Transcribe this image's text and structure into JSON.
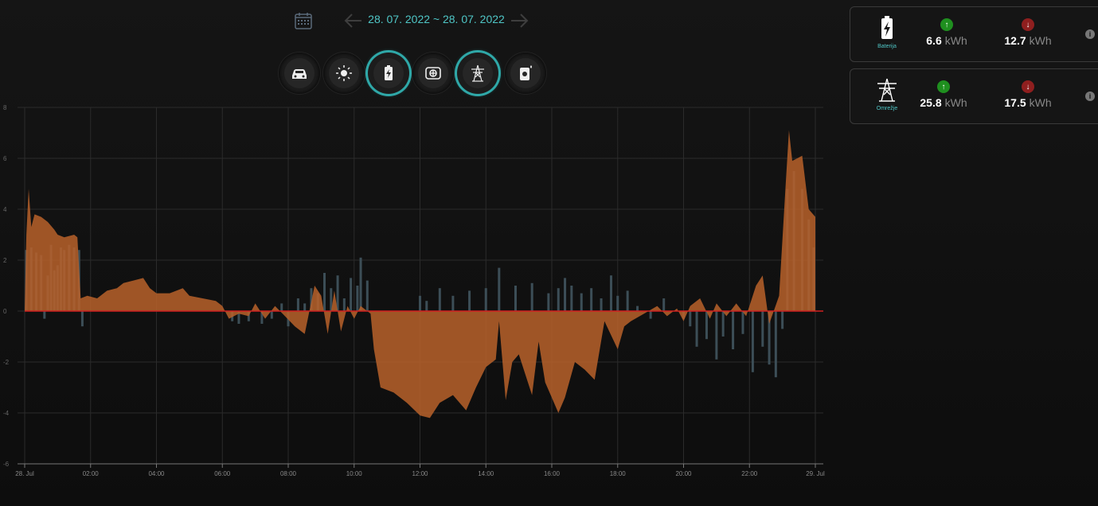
{
  "header": {
    "date_range": "28. 07. 2022 ~ 28. 07. 2022",
    "icons": {
      "calendar": "calendar-icon",
      "prev": "arrow-left-icon",
      "next": "arrow-right-icon"
    }
  },
  "toolbar": {
    "buttons": [
      {
        "name": "car-button",
        "icon": "car-icon",
        "active": false
      },
      {
        "name": "solar-button",
        "icon": "sun-icon",
        "active": false
      },
      {
        "name": "battery-button",
        "icon": "battery-icon",
        "active": true
      },
      {
        "name": "consumption-button",
        "icon": "meter-icon",
        "active": false
      },
      {
        "name": "grid-button",
        "icon": "power-tower-icon",
        "active": true
      },
      {
        "name": "heater-button",
        "icon": "boiler-icon",
        "active": false
      }
    ],
    "accent_color": "#2fa8a8"
  },
  "cards": [
    {
      "label": "Baterija",
      "icon": "battery-icon",
      "up": {
        "value": "6.6",
        "unit": "kWh",
        "color": "#1f8f1f"
      },
      "down": {
        "value": "12.7",
        "unit": "kWh",
        "color": "#8f1f1f"
      }
    },
    {
      "label": "Omrežje",
      "icon": "power-tower-icon",
      "up": {
        "value": "25.8",
        "unit": "kWh",
        "color": "#1f8f1f"
      },
      "down": {
        "value": "17.5",
        "unit": "kWh",
        "color": "#8f1f1f"
      }
    }
  ],
  "chart_data": {
    "type": "area",
    "title": "",
    "xlabel": "",
    "ylabel": "",
    "ylim": [
      -6,
      8
    ],
    "y_ticks": [
      "8",
      "6",
      "4",
      "2",
      "0",
      "-2",
      "-4",
      "-6"
    ],
    "x_tick_labels": [
      "28. Jul",
      "02:00",
      "04:00",
      "06:00",
      "08:00",
      "10:00",
      "12:00",
      "14:00",
      "16:00",
      "18:00",
      "20:00",
      "22:00",
      "29. Jul"
    ],
    "x_hours": [
      0,
      2,
      4,
      6,
      8,
      10,
      12,
      14,
      16,
      18,
      20,
      22,
      24
    ],
    "grid": true,
    "colors": {
      "area": "#b8612a",
      "bars": "#3c4e57",
      "zero_line": "#d02020"
    },
    "series": [
      {
        "type": "area",
        "points": [
          [
            0,
            0
          ],
          [
            0.05,
            3.0
          ],
          [
            0.12,
            4.8
          ],
          [
            0.2,
            3.3
          ],
          [
            0.3,
            3.8
          ],
          [
            0.5,
            3.7
          ],
          [
            0.7,
            3.5
          ],
          [
            0.9,
            3.2
          ],
          [
            1.0,
            3.0
          ],
          [
            1.2,
            2.9
          ],
          [
            1.5,
            3.0
          ],
          [
            1.6,
            2.9
          ],
          [
            1.7,
            0.5
          ],
          [
            1.9,
            0.6
          ],
          [
            2.2,
            0.5
          ],
          [
            2.5,
            0.8
          ],
          [
            2.8,
            0.9
          ],
          [
            3.0,
            1.1
          ],
          [
            3.3,
            1.2
          ],
          [
            3.6,
            1.3
          ],
          [
            3.8,
            0.9
          ],
          [
            4.0,
            0.7
          ],
          [
            4.4,
            0.7
          ],
          [
            4.8,
            0.9
          ],
          [
            5.0,
            0.6
          ],
          [
            5.4,
            0.5
          ],
          [
            5.8,
            0.4
          ],
          [
            6.0,
            0.2
          ],
          [
            6.2,
            -0.3
          ],
          [
            6.5,
            -0.1
          ],
          [
            6.8,
            -0.2
          ],
          [
            7.0,
            0.3
          ],
          [
            7.3,
            -0.3
          ],
          [
            7.6,
            0.2
          ],
          [
            7.9,
            -0.2
          ],
          [
            8.2,
            -0.6
          ],
          [
            8.5,
            -0.9
          ],
          [
            8.8,
            1.0
          ],
          [
            9.0,
            0.6
          ],
          [
            9.2,
            -0.9
          ],
          [
            9.4,
            0.8
          ],
          [
            9.6,
            -0.8
          ],
          [
            9.8,
            0.2
          ],
          [
            10.0,
            -0.3
          ],
          [
            10.2,
            0.2
          ],
          [
            10.5,
            -0.1
          ],
          [
            10.6,
            -1.5
          ],
          [
            10.8,
            -3.0
          ],
          [
            11.2,
            -3.2
          ],
          [
            11.6,
            -3.6
          ],
          [
            12.0,
            -4.1
          ],
          [
            12.3,
            -4.2
          ],
          [
            12.6,
            -3.6
          ],
          [
            13.0,
            -3.3
          ],
          [
            13.4,
            -3.9
          ],
          [
            13.7,
            -3.0
          ],
          [
            14.0,
            -2.2
          ],
          [
            14.3,
            -1.9
          ],
          [
            14.4,
            -0.4
          ],
          [
            14.6,
            -3.5
          ],
          [
            14.8,
            -2.0
          ],
          [
            15.0,
            -1.7
          ],
          [
            15.2,
            -2.5
          ],
          [
            15.4,
            -3.3
          ],
          [
            15.6,
            -1.2
          ],
          [
            15.8,
            -2.8
          ],
          [
            16.0,
            -3.4
          ],
          [
            16.2,
            -4.0
          ],
          [
            16.4,
            -3.4
          ],
          [
            16.7,
            -2.0
          ],
          [
            17.0,
            -2.3
          ],
          [
            17.3,
            -2.7
          ],
          [
            17.6,
            -0.4
          ],
          [
            18.0,
            -1.5
          ],
          [
            18.2,
            -0.6
          ],
          [
            18.4,
            -0.4
          ],
          [
            18.8,
            -0.1
          ],
          [
            19.2,
            0.2
          ],
          [
            19.5,
            -0.2
          ],
          [
            19.8,
            0.1
          ],
          [
            20.0,
            -0.4
          ],
          [
            20.2,
            0.2
          ],
          [
            20.5,
            0.5
          ],
          [
            20.8,
            -0.3
          ],
          [
            21.0,
            0.3
          ],
          [
            21.3,
            -0.2
          ],
          [
            21.6,
            0.3
          ],
          [
            21.9,
            -0.2
          ],
          [
            22.2,
            1.0
          ],
          [
            22.4,
            1.4
          ],
          [
            22.6,
            -0.5
          ],
          [
            22.9,
            0.6
          ],
          [
            23.1,
            5.0
          ],
          [
            23.2,
            7.1
          ],
          [
            23.3,
            5.9
          ],
          [
            23.6,
            6.1
          ],
          [
            23.8,
            4.0
          ],
          [
            24.0,
            3.7
          ],
          [
            24.0,
            0
          ]
        ]
      },
      {
        "type": "bars",
        "points": [
          [
            0.05,
            2.4
          ],
          [
            0.2,
            2.5
          ],
          [
            0.35,
            2.3
          ],
          [
            0.5,
            2.2
          ],
          [
            0.6,
            -0.3
          ],
          [
            0.7,
            1.4
          ],
          [
            0.8,
            2.6
          ],
          [
            0.9,
            1.6
          ],
          [
            1.0,
            1.8
          ],
          [
            1.1,
            2.5
          ],
          [
            1.2,
            2.4
          ],
          [
            1.35,
            2.6
          ],
          [
            1.5,
            2.5
          ],
          [
            1.65,
            2.4
          ],
          [
            1.75,
            -0.6
          ],
          [
            6.3,
            -0.4
          ],
          [
            6.5,
            -0.5
          ],
          [
            6.8,
            -0.4
          ],
          [
            7.2,
            -0.5
          ],
          [
            7.5,
            -0.3
          ],
          [
            7.8,
            0.3
          ],
          [
            8.0,
            -0.6
          ],
          [
            8.3,
            0.5
          ],
          [
            8.5,
            0.3
          ],
          [
            8.7,
            0.9
          ],
          [
            8.9,
            0.7
          ],
          [
            9.1,
            1.5
          ],
          [
            9.3,
            0.9
          ],
          [
            9.5,
            1.4
          ],
          [
            9.7,
            0.5
          ],
          [
            9.9,
            1.3
          ],
          [
            10.1,
            1.0
          ],
          [
            10.2,
            2.1
          ],
          [
            10.4,
            1.2
          ],
          [
            12.0,
            0.6
          ],
          [
            12.2,
            0.4
          ],
          [
            12.6,
            0.9
          ],
          [
            13.0,
            0.6
          ],
          [
            13.5,
            0.8
          ],
          [
            14.0,
            0.9
          ],
          [
            14.4,
            1.7
          ],
          [
            14.9,
            1.0
          ],
          [
            15.4,
            1.1
          ],
          [
            15.9,
            0.7
          ],
          [
            16.2,
            0.9
          ],
          [
            16.4,
            1.3
          ],
          [
            16.6,
            1.0
          ],
          [
            16.9,
            0.7
          ],
          [
            17.2,
            0.9
          ],
          [
            17.5,
            0.5
          ],
          [
            17.8,
            1.4
          ],
          [
            18.0,
            0.6
          ],
          [
            18.3,
            0.8
          ],
          [
            18.6,
            0.2
          ],
          [
            19.0,
            -0.3
          ],
          [
            19.4,
            0.5
          ],
          [
            20.0,
            -0.3
          ],
          [
            20.2,
            -0.6
          ],
          [
            20.4,
            -1.4
          ],
          [
            20.7,
            -1.1
          ],
          [
            21.0,
            -1.9
          ],
          [
            21.2,
            -1.0
          ],
          [
            21.5,
            -1.5
          ],
          [
            21.8,
            -0.9
          ],
          [
            22.1,
            -2.4
          ],
          [
            22.4,
            -1.4
          ],
          [
            22.6,
            -2.1
          ],
          [
            22.8,
            -2.6
          ],
          [
            23.0,
            -0.7
          ],
          [
            23.15,
            4.8
          ],
          [
            23.35,
            5.5
          ],
          [
            23.6,
            4.8
          ],
          [
            23.8,
            3.6
          ],
          [
            23.95,
            2.5
          ]
        ]
      }
    ]
  }
}
